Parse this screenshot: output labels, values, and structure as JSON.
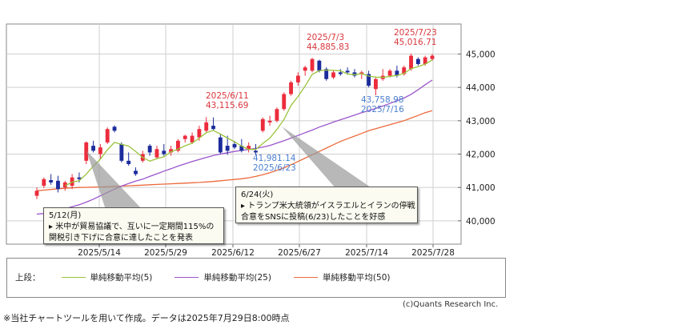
{
  "chart_data": {
    "type": "candlestick",
    "x_tick_labels": [
      "2025/5/14",
      "2025/5/29",
      "2025/6/12",
      "2025/6/27",
      "2025/7/14",
      "2025/7/28"
    ],
    "y_ticks": [
      40000,
      41000,
      42000,
      43000,
      44000,
      45000
    ],
    "y_tick_labels": [
      "40,000",
      "41,000",
      "42,000",
      "43,000",
      "44,000",
      "45,000"
    ],
    "ylim": [
      39300,
      45900
    ],
    "candles": [
      {
        "o": 40750,
        "h": 41000,
        "l": 40650,
        "c": 40900
      },
      {
        "o": 41050,
        "h": 41300,
        "l": 40980,
        "c": 41250
      },
      {
        "o": 41220,
        "h": 41400,
        "l": 41080,
        "c": 41150
      },
      {
        "o": 41200,
        "h": 41350,
        "l": 40850,
        "c": 40950
      },
      {
        "o": 41000,
        "h": 41200,
        "l": 40900,
        "c": 41150
      },
      {
        "o": 41050,
        "h": 41400,
        "l": 40950,
        "c": 41300
      },
      {
        "o": 41300,
        "h": 41450,
        "l": 41150,
        "c": 41250
      },
      {
        "o": 41800,
        "h": 42380,
        "l": 41700,
        "c": 42350
      },
      {
        "o": 42250,
        "h": 42400,
        "l": 42050,
        "c": 42100
      },
      {
        "o": 42000,
        "h": 42300,
        "l": 41850,
        "c": 42200
      },
      {
        "o": 42350,
        "h": 42800,
        "l": 42300,
        "c": 42750
      },
      {
        "o": 42820,
        "h": 42860,
        "l": 42650,
        "c": 42700
      },
      {
        "o": 42300,
        "h": 42350,
        "l": 41750,
        "c": 41800
      },
      {
        "o": 41800,
        "h": 42050,
        "l": 41650,
        "c": 41700
      },
      {
        "o": 41500,
        "h": 41600,
        "l": 41350,
        "c": 41400
      },
      {
        "o": 41800,
        "h": 42100,
        "l": 41750,
        "c": 42000
      },
      {
        "o": 42250,
        "h": 42300,
        "l": 41950,
        "c": 42050
      },
      {
        "o": 41900,
        "h": 42250,
        "l": 41850,
        "c": 42150
      },
      {
        "o": 42100,
        "h": 42300,
        "l": 41950,
        "c": 42000
      },
      {
        "o": 42050,
        "h": 42250,
        "l": 41950,
        "c": 42150
      },
      {
        "o": 42100,
        "h": 42450,
        "l": 42050,
        "c": 42400
      },
      {
        "o": 42450,
        "h": 42580,
        "l": 42350,
        "c": 42550
      },
      {
        "o": 42350,
        "h": 42650,
        "l": 42300,
        "c": 42550
      },
      {
        "o": 42500,
        "h": 42850,
        "l": 42400,
        "c": 42750
      },
      {
        "o": 42700,
        "h": 43110,
        "l": 42650,
        "c": 42950
      },
      {
        "o": 42850,
        "h": 43100,
        "l": 42700,
        "c": 42750
      },
      {
        "o": 42500,
        "h": 42600,
        "l": 42000,
        "c": 42050
      },
      {
        "o": 42250,
        "h": 42550,
        "l": 41980,
        "c": 42100
      },
      {
        "o": 42300,
        "h": 42400,
        "l": 42150,
        "c": 42200
      },
      {
        "o": 42250,
        "h": 42450,
        "l": 42050,
        "c": 42100
      },
      {
        "o": 42150,
        "h": 42350,
        "l": 42050,
        "c": 42250
      },
      {
        "o": 42100,
        "h": 42300,
        "l": 41980,
        "c": 42050
      },
      {
        "o": 42700,
        "h": 43100,
        "l": 42650,
        "c": 43050
      },
      {
        "o": 42950,
        "h": 43150,
        "l": 42850,
        "c": 43000
      },
      {
        "o": 43000,
        "h": 43400,
        "l": 42950,
        "c": 43350
      },
      {
        "o": 43350,
        "h": 43850,
        "l": 43300,
        "c": 43800
      },
      {
        "o": 43800,
        "h": 44200,
        "l": 43750,
        "c": 44150
      },
      {
        "o": 44150,
        "h": 44450,
        "l": 44050,
        "c": 44350
      },
      {
        "o": 44500,
        "h": 44650,
        "l": 44350,
        "c": 44600
      },
      {
        "o": 44500,
        "h": 44885,
        "l": 44450,
        "c": 44850
      },
      {
        "o": 44800,
        "h": 44830,
        "l": 44450,
        "c": 44500
      },
      {
        "o": 44550,
        "h": 44600,
        "l": 44200,
        "c": 44250
      },
      {
        "o": 44300,
        "h": 44500,
        "l": 44250,
        "c": 44450
      },
      {
        "o": 44450,
        "h": 44550,
        "l": 44350,
        "c": 44400
      },
      {
        "o": 44500,
        "h": 44600,
        "l": 44380,
        "c": 44450
      },
      {
        "o": 44450,
        "h": 44550,
        "l": 44300,
        "c": 44350
      },
      {
        "o": 44400,
        "h": 44500,
        "l": 44250,
        "c": 44450
      },
      {
        "o": 44400,
        "h": 44500,
        "l": 44000,
        "c": 44050
      },
      {
        "o": 43950,
        "h": 44300,
        "l": 43760,
        "c": 44250
      },
      {
        "o": 44250,
        "h": 44550,
        "l": 44200,
        "c": 44350
      },
      {
        "o": 44350,
        "h": 44550,
        "l": 44300,
        "c": 44500
      },
      {
        "o": 44500,
        "h": 44650,
        "l": 44300,
        "c": 44350
      },
      {
        "o": 44400,
        "h": 44650,
        "l": 44350,
        "c": 44600
      },
      {
        "o": 44550,
        "h": 45017,
        "l": 44500,
        "c": 44950
      },
      {
        "o": 44850,
        "h": 44900,
        "l": 44650,
        "c": 44700
      },
      {
        "o": 44700,
        "h": 44950,
        "l": 44650,
        "c": 44900
      },
      {
        "o": 44850,
        "h": 45000,
        "l": 44800,
        "c": 44950
      }
    ],
    "ma5": [
      null,
      null,
      null,
      null,
      41050,
      41160,
      41200,
      41400,
      41640,
      41850,
      42130,
      42350,
      42290,
      42240,
      42080,
      41900,
      41790,
      41860,
      41920,
      42070,
      42150,
      42250,
      42330,
      42480,
      42640,
      42710,
      42600,
      42480,
      42370,
      42240,
      42140,
      42140,
      42320,
      42480,
      42740,
      43040,
      43460,
      43730,
      44040,
      44390,
      44500,
      44520,
      44510,
      44500,
      44400,
      44380,
      44410,
      44340,
      44310,
      44300,
      44330,
      44360,
      44420,
      44560,
      44620,
      44700,
      44820
    ],
    "ma25": [
      40200,
      40220,
      40260,
      40300,
      40360,
      40420,
      40480,
      40560,
      40650,
      40750,
      40850,
      40950,
      41040,
      41120,
      41190,
      41250,
      41330,
      41410,
      41490,
      41560,
      41640,
      41710,
      41780,
      41840,
      41900,
      41960,
      42000,
      42040,
      42080,
      42110,
      42140,
      42170,
      42210,
      42260,
      42330,
      42400,
      42480,
      42560,
      42640,
      42720,
      42810,
      42880,
      42960,
      43030,
      43100,
      43170,
      43240,
      43300,
      43370,
      43440,
      43520,
      43600,
      43680,
      43790,
      43930,
      44080,
      44220
    ],
    "ma50": [
      40900,
      40920,
      40940,
      40960,
      40975,
      40990,
      41000,
      41005,
      41010,
      41015,
      41020,
      41030,
      41040,
      41050,
      41060,
      41070,
      41080,
      41090,
      41100,
      41110,
      41120,
      41130,
      41140,
      41150,
      41165,
      41180,
      41200,
      41220,
      41240,
      41260,
      41290,
      41330,
      41380,
      41440,
      41510,
      41590,
      41680,
      41780,
      41880,
      41980,
      42080,
      42180,
      42280,
      42380,
      42460,
      42540,
      42620,
      42700,
      42760,
      42820,
      42880,
      42940,
      43000,
      43080,
      43160,
      43240,
      43300
    ],
    "annotations": [
      {
        "date": "2025/7/3",
        "value": "44,885.83",
        "color": "red"
      },
      {
        "date": "2025/7/23",
        "value": "45,016.71",
        "color": "red"
      },
      {
        "date": "2025/6/11",
        "value": "43,115.69",
        "color": "red"
      },
      {
        "date": "2025/6/23",
        "value": "41,981.14",
        "color": "blue"
      },
      {
        "date": "2025/7/16",
        "value": "43,758.98",
        "color": "blue"
      }
    ],
    "legend_prefix": "上段：",
    "legend": [
      {
        "name": "単純移動平均(5)",
        "color": "#9ac43c"
      },
      {
        "name": "単純移動平均(25)",
        "color": "#9a55cc"
      },
      {
        "name": "単純移動平均(50)",
        "color": "#ec6a3c"
      }
    ],
    "colors": {
      "up": "#ec2c3c",
      "down": "#1c2c9c",
      "grid": "#cfcfcf"
    }
  },
  "callouts": {
    "first": {
      "title": "5/12(月)",
      "line1": "▸ 米中が貿易協議で、互いに一定期間115%の",
      "line2": "関税引き下げに合意に達したことを発表"
    },
    "second": {
      "title": "6/24(火)",
      "line1": "▸ トランプ米大統領がイスラエルとイランの停戦",
      "line2": "合意をSNSに投稿(6/23)したことを好感"
    }
  },
  "copyright": "(c)Quants Research Inc.",
  "footnote": "※当社チャートツールを用いて作成。データは2025年7月29日8:00時点"
}
